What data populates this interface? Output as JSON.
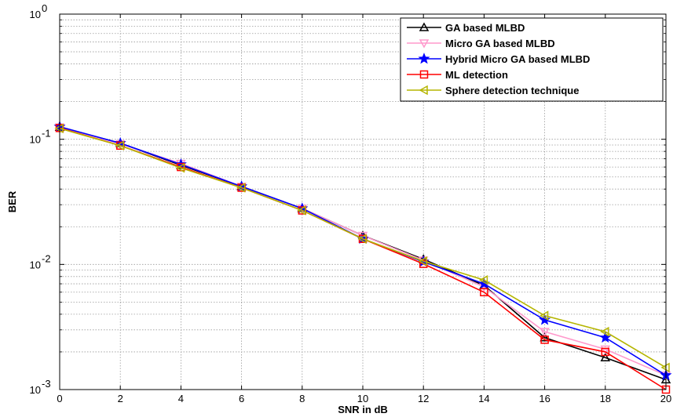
{
  "chart_data": {
    "type": "line",
    "xlabel": "SNR in dB",
    "ylabel": "BER",
    "xlim": [
      0,
      20
    ],
    "ylim": [
      0.001,
      1
    ],
    "yscale": "log",
    "grid": true,
    "legend_position": "top-right",
    "x": [
      0,
      2,
      4,
      6,
      8,
      10,
      12,
      14,
      16,
      18,
      20
    ],
    "x_ticks": [
      "0",
      "2",
      "4",
      "6",
      "8",
      "10",
      "12",
      "14",
      "16",
      "18",
      "20"
    ],
    "y_ticks": [
      {
        "value": 0.001,
        "base": "10",
        "exp": "-3"
      },
      {
        "value": 0.01,
        "base": "10",
        "exp": "-2"
      },
      {
        "value": 0.1,
        "base": "10",
        "exp": "-1"
      },
      {
        "value": 1,
        "base": "10",
        "exp": "0"
      }
    ],
    "series": [
      {
        "name": "GA based MLBD",
        "color": "#000000",
        "marker": "triangle-up",
        "values": [
          0.125,
          0.093,
          0.062,
          0.042,
          0.028,
          0.017,
          0.011,
          0.0068,
          0.0026,
          0.0018,
          0.0012
        ]
      },
      {
        "name": "Micro GA based MLBD",
        "color": "#ff99cc",
        "marker": "triangle-down",
        "values": [
          0.125,
          0.092,
          0.064,
          0.042,
          0.028,
          0.017,
          0.0108,
          0.0066,
          0.0029,
          0.0021,
          0.0013
        ]
      },
      {
        "name": "Hybrid Micro GA based MLBD",
        "color": "#0000ff",
        "marker": "star",
        "values": [
          0.126,
          0.093,
          0.063,
          0.042,
          0.028,
          0.016,
          0.0105,
          0.007,
          0.0036,
          0.0026,
          0.0013
        ]
      },
      {
        "name": "ML detection",
        "color": "#ff0000",
        "marker": "square",
        "values": [
          0.123,
          0.089,
          0.06,
          0.041,
          0.027,
          0.016,
          0.0101,
          0.006,
          0.0025,
          0.002,
          0.001
        ]
      },
      {
        "name": "Sphere detection technique",
        "color": "#b5b500",
        "marker": "triangle-left",
        "values": [
          0.122,
          0.089,
          0.059,
          0.041,
          0.027,
          0.016,
          0.0106,
          0.0075,
          0.0039,
          0.0029,
          0.0015
        ]
      }
    ]
  }
}
